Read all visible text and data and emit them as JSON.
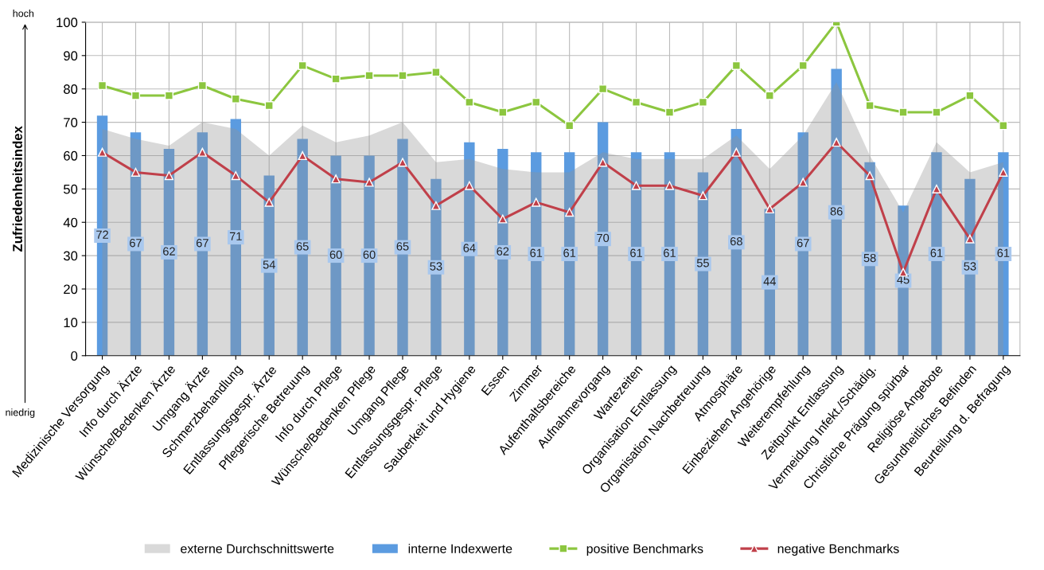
{
  "chart_data": {
    "type": "bar",
    "ylabel": "Zufriedenheitsindex",
    "categories": [
      "Medizinische Versorgung",
      "Info durch Ärzte",
      "Wünsche/Bedenken Ärzte",
      "Umgang Ärzte",
      "Schmerzbehandlung",
      "Entlassungsgespr. Ärzte",
      "Pflegerische Betreuung",
      "Info durch Pflege",
      "Wünsche/Bedenken Pflege",
      "Umgang Pflege",
      "Entlassungsgespr. Pflege",
      "Sauberkeit und Hygiene",
      "Essen",
      "Zimmer",
      "Aufenthaltsbereiche",
      "Aufnahmevorgang",
      "Wartezeiten",
      "Organisation Entlassung",
      "Organisation Nachbetreuung",
      "Atmosphäre",
      "Einbeziehen Angehörige",
      "Weiterempfehlung",
      "Zeitpunkt Entlassung",
      "Vermeidung Infekt./Schädig.",
      "Christliche Prägung spürbar",
      "Religiöse Angebote",
      "Gesundheitliches Befinden",
      "Beurteilung d. Befragung"
    ],
    "series": [
      {
        "name": "externe Durchschnittswerte",
        "type": "area",
        "color": "#929292",
        "values": [
          68,
          65,
          63,
          70,
          68,
          60,
          69,
          64,
          66,
          70,
          58,
          59,
          56,
          55,
          55,
          61,
          59,
          59,
          59,
          66,
          56,
          66,
          82,
          60,
          43,
          64,
          55,
          58
        ]
      },
      {
        "name": "interne Indexwerte",
        "color": "#5b9be0",
        "data_labels": true,
        "values": [
          72,
          67,
          62,
          67,
          71,
          54,
          65,
          60,
          60,
          65,
          53,
          64,
          62,
          61,
          61,
          70,
          61,
          61,
          55,
          68,
          44,
          67,
          86,
          58,
          45,
          61,
          53,
          61
        ]
      },
      {
        "name": "positive Benchmarks",
        "type": "line",
        "color": "#8cc63f",
        "marker": "square",
        "values": [
          81,
          78,
          78,
          81,
          77,
          75,
          87,
          83,
          84,
          84,
          85,
          76,
          73,
          76,
          69,
          80,
          76,
          73,
          76,
          87,
          78,
          87,
          100,
          75,
          73,
          73,
          78,
          69
        ]
      },
      {
        "name": "negative Benchmarks",
        "type": "line",
        "color": "#c0404a",
        "marker": "triangle",
        "values": [
          61,
          55,
          54,
          61,
          54,
          46,
          60,
          53,
          52,
          58,
          45,
          51,
          41,
          46,
          43,
          58,
          51,
          51,
          48,
          61,
          44,
          52,
          64,
          54,
          25,
          50,
          35,
          55
        ]
      }
    ],
    "annotations": [
      "hoch",
      "niedrig"
    ],
    "ylim": [
      0,
      100
    ],
    "yticks": [
      0,
      10,
      20,
      30,
      40,
      50,
      60,
      70,
      80,
      90,
      100
    ],
    "grid": true,
    "legend": "bottom"
  }
}
